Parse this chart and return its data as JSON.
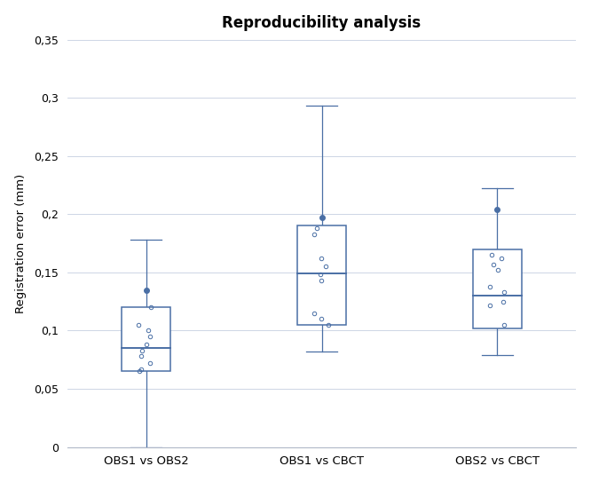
{
  "title": "Reproducibility analysis",
  "ylabel": "Registration error (mm)",
  "categories": [
    "OBS1 vs OBS2",
    "OBS1 vs CBCT",
    "OBS2 vs CBCT"
  ],
  "box_color": "#4a6fa5",
  "background_color": "#ffffff",
  "ylim": [
    0,
    0.35
  ],
  "yticks": [
    0,
    0.05,
    0.1,
    0.15,
    0.2,
    0.25,
    0.3,
    0.35
  ],
  "ytick_labels": [
    "0",
    "0,05",
    "0,1",
    "0,15",
    "0,2",
    "0,25",
    "0,3",
    "0,35"
  ],
  "boxes": [
    {
      "label": "OBS1 vs OBS2",
      "q1": 0.065,
      "median": 0.085,
      "q3": 0.12,
      "whisker_low": 0.0,
      "whisker_high": 0.178,
      "fliers_high": [
        0.135
      ],
      "fliers_low": [],
      "jitter": [
        0.12,
        0.105,
        0.1,
        0.095,
        0.088,
        0.083,
        0.078,
        0.072,
        0.067,
        0.065
      ]
    },
    {
      "label": "OBS1 vs CBCT",
      "q1": 0.105,
      "median": 0.149,
      "q3": 0.19,
      "whisker_low": 0.082,
      "whisker_high": 0.293,
      "fliers_high": [
        0.197
      ],
      "fliers_low": [],
      "jitter": [
        0.188,
        0.183,
        0.162,
        0.155,
        0.148,
        0.143,
        0.115,
        0.11,
        0.105
      ]
    },
    {
      "label": "OBS2 vs CBCT",
      "q1": 0.102,
      "median": 0.13,
      "q3": 0.17,
      "whisker_low": 0.079,
      "whisker_high": 0.222,
      "fliers_high": [
        0.204
      ],
      "fliers_low": [],
      "jitter": [
        0.165,
        0.162,
        0.157,
        0.152,
        0.138,
        0.133,
        0.125,
        0.122,
        0.105
      ]
    }
  ]
}
